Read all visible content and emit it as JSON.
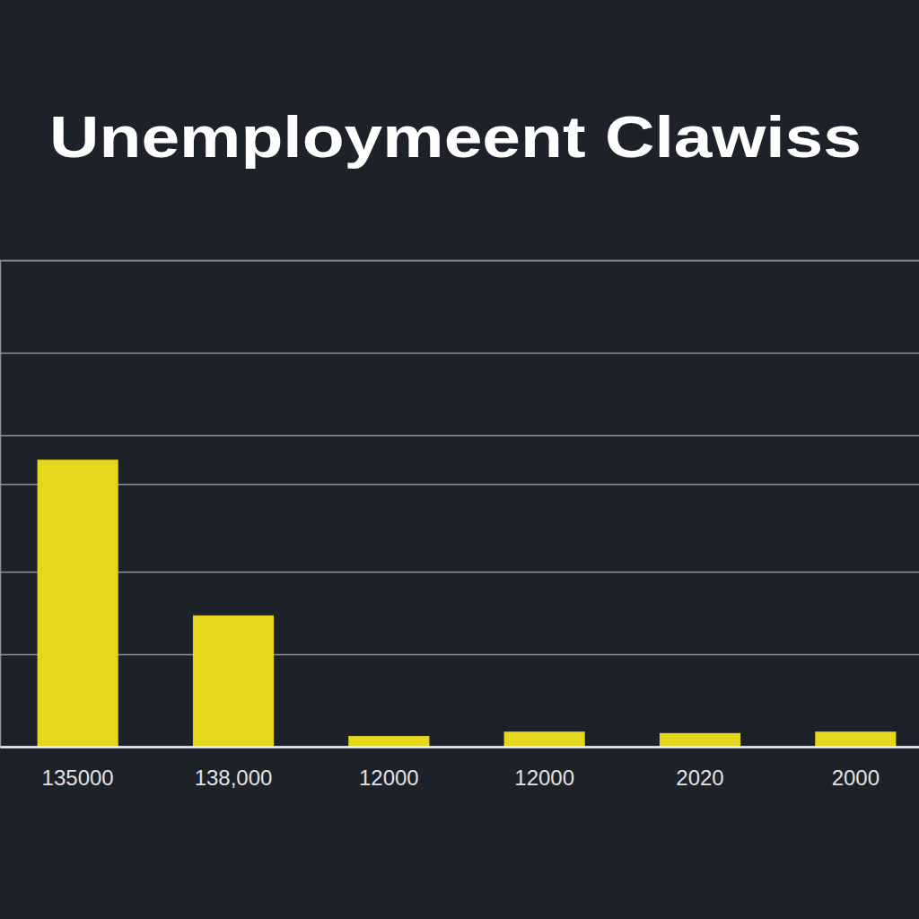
{
  "chart_data": {
    "type": "bar",
    "title": "Unemploymeent Clawiss",
    "categories": [
      "135000",
      "138,000",
      "12000",
      "12000",
      "2020",
      "2000"
    ],
    "values": [
      59,
      27,
      2.2,
      3.1,
      2.8,
      3.1
    ],
    "color": "#e5d71b",
    "ylim": [
      0,
      100
    ],
    "yticks": [
      0,
      19,
      36,
      54,
      64,
      81,
      100
    ],
    "grid": true,
    "tick_labels": "x"
  }
}
